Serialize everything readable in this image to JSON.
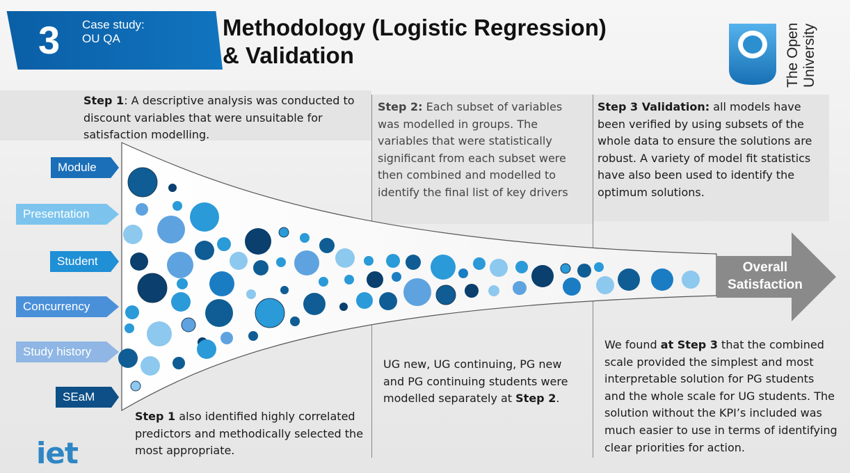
{
  "header": {
    "section_number": "3",
    "section_label": "Case study:\nOU QA",
    "title": "Methodology (Logistic Regression)\n& Validation"
  },
  "logo": {
    "name": "The Open\nUniversity",
    "icon": "open-university-keyhole-icon",
    "color": "#1e87cc"
  },
  "footer_logo": {
    "text": "iet",
    "color": "#2f86c4"
  },
  "steps": {
    "step1_top": {
      "bold": "Step 1",
      "text": ": A descriptive analysis was conducted to discount variables that were unsuitable for satisfaction modelling."
    },
    "step2_top": {
      "bold": "Step 2:",
      "text": " Each subset of variables was modelled in groups. The variables that were statistically significant from each subset were then combined and modelled to identify the final list of key drivers"
    },
    "step3_top": {
      "bold": "Step 3 Validation:",
      "text": " all models have been verified by using subsets of the whole data to ensure the solutions are robust. A variety of model fit statistics have also been used to identify the optimum solutions."
    },
    "step1_bottom": {
      "bold": "Step 1",
      "text": " also identified highly correlated predictors and methodically selected the most appropriate."
    },
    "step2_bottom": {
      "text": "UG new, UG continuing, PG new and PG continuing students were modelled separately at ",
      "bold": "Step 2",
      "tail": "."
    },
    "step3_bottom": {
      "pre": "We found ",
      "bold": "at Step 3",
      "text": " that the combined scale provided the simplest and most interpretable solution for PG students and the whole scale for UG students. The solution without the KPI’s included was much easier to use in terms of identifying clear priorities  for action."
    }
  },
  "categories": [
    {
      "label": "Module",
      "color": "#1b6fb8"
    },
    {
      "label": "Presentation",
      "color": "#7cc4ee"
    },
    {
      "label": "Student",
      "color": "#1f8fd6"
    },
    {
      "label": "Concurrency",
      "color": "#4a90d9"
    },
    {
      "label": "Study history",
      "color": "#8fb6e4"
    },
    {
      "label": "SEaM",
      "color": "#0d4f86"
    }
  ],
  "outcome": {
    "label": "Overall\nSatisfaction",
    "color": "#8a8a8a"
  },
  "bubble_colors": [
    "#0f5d94",
    "#1a7dc4",
    "#5ea3e0",
    "#8dc8ee",
    "#0a3f6e",
    "#2a9ad8"
  ]
}
